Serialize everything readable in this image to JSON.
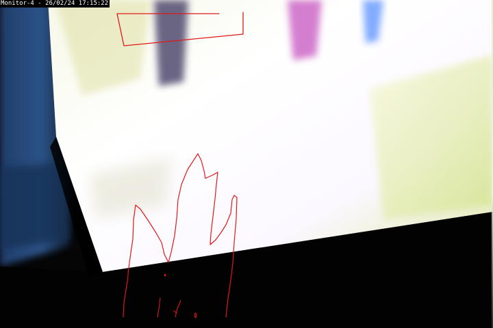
{
  "camera_feed": {
    "overlay_timestamp": "Monitor-4 - 26/02/24 17:15:22",
    "colors": {
      "overlay_background": "#000000",
      "overlay_text": "#ffffff",
      "markup_stroke": "#e01818",
      "screen_glare": "#fdfbff",
      "screen_tint": "#eef2a8"
    }
  }
}
